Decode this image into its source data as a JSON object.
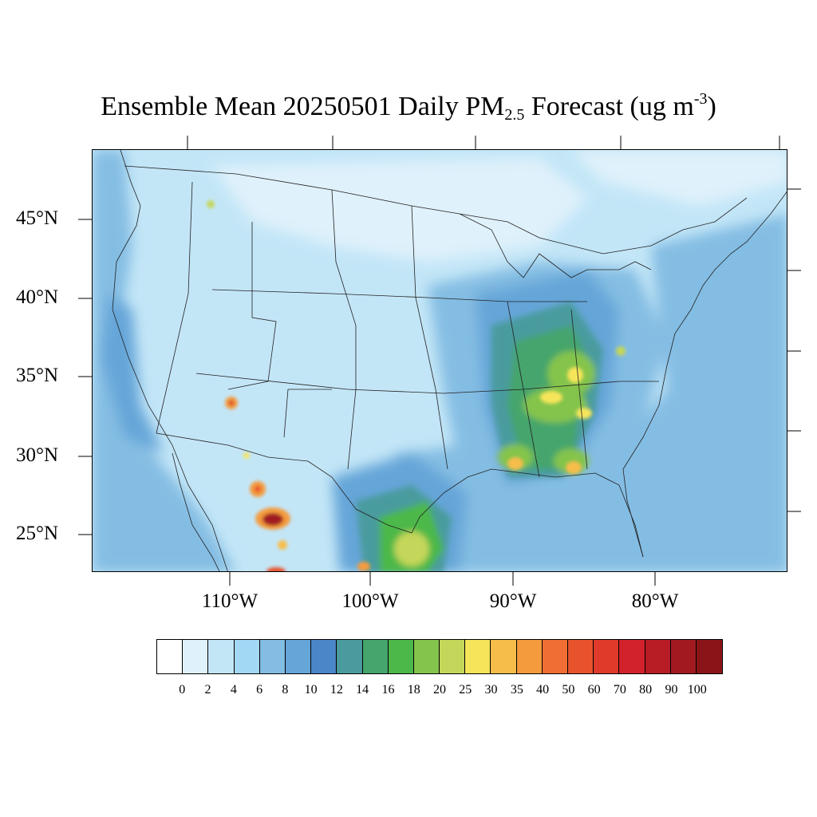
{
  "title": {
    "main": "Ensemble Mean 20250501 Daily PM",
    "sub": "2.5",
    "mid": " Forecast (ug m",
    "sup": "-3",
    "end": ")"
  },
  "latitude_labels": [
    "45°N",
    "40°N",
    "35°N",
    "30°N",
    "25°N"
  ],
  "longitude_labels": [
    "110°W",
    "100°W",
    "90°W",
    "80°W"
  ],
  "colorbar": {
    "labels": [
      "0",
      "2",
      "4",
      "6",
      "8",
      "10",
      "12",
      "14",
      "16",
      "18",
      "20",
      "25",
      "30",
      "35",
      "40",
      "50",
      "60",
      "70",
      "80",
      "90",
      "100"
    ],
    "colors": [
      "#ffffff",
      "#dff1fb",
      "#c3e6f7",
      "#a3d8f4",
      "#84bde3",
      "#65a5d8",
      "#4a86c8",
      "#4a9b9e",
      "#45a56c",
      "#4cb84a",
      "#85c44c",
      "#c4d75a",
      "#f6e55a",
      "#f7bd4b",
      "#f49b3d",
      "#f06e33",
      "#e8532d",
      "#df3a2a",
      "#d2222b",
      "#b81c24",
      "#a11a20",
      "#8a1519"
    ]
  },
  "map_colors": {
    "background": "#cde9f7",
    "ocean_light": "#dff1fb",
    "low": "#c3e6f7",
    "mid": "#a3d8f4",
    "mid_high": "#84bde3",
    "high": "#65a5d8",
    "teal": "#4a9b9e",
    "green": "#4cb84a",
    "yellow_green": "#85c44c",
    "yellow": "#f6e55a",
    "orange": "#f49b3d",
    "red": "#d2222b",
    "dark_red": "#a11a20"
  }
}
